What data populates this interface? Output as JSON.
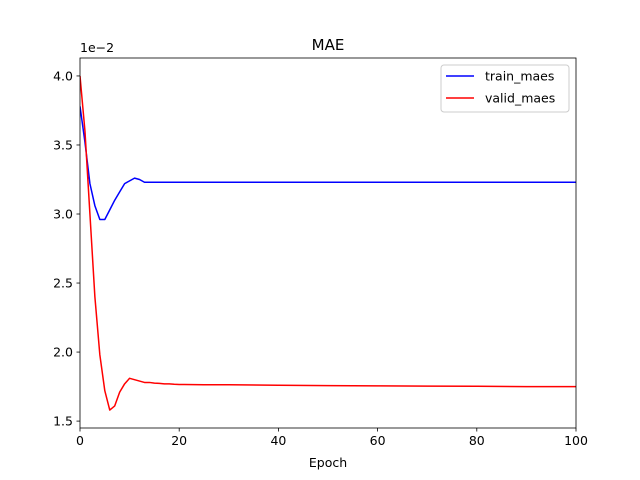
{
  "chart_data": {
    "type": "line",
    "title": "MAE",
    "xlabel": "Epoch",
    "ylabel": "",
    "y_offset_text": "1e−2",
    "xlim": [
      0,
      100
    ],
    "ylim": [
      1.45,
      4.13
    ],
    "x_ticks": [
      0,
      20,
      40,
      60,
      80,
      100
    ],
    "x_tick_labels": [
      "0",
      "20",
      "40",
      "60",
      "80",
      "100"
    ],
    "y_ticks": [
      1.5,
      2.0,
      2.5,
      3.0,
      3.5,
      4.0
    ],
    "y_tick_labels": [
      "1.5",
      "2.0",
      "2.5",
      "3.0",
      "3.5",
      "4.0"
    ],
    "grid": false,
    "legend_position": "upper right",
    "series": [
      {
        "name": "train_maes",
        "color": "#0000ff",
        "x": [
          0,
          1,
          2,
          3,
          4,
          5,
          6,
          7,
          8,
          9,
          10,
          11,
          12,
          13,
          14,
          15,
          16,
          17,
          18,
          19,
          20,
          21,
          22,
          25,
          30,
          40,
          50,
          60,
          70,
          80,
          90,
          100
        ],
        "y": [
          3.78,
          3.52,
          3.22,
          3.06,
          2.96,
          2.96,
          3.03,
          3.1,
          3.16,
          3.22,
          3.24,
          3.26,
          3.25,
          3.23,
          3.23,
          3.23,
          3.23,
          3.23,
          3.23,
          3.23,
          3.23,
          3.23,
          3.23,
          3.23,
          3.23,
          3.23,
          3.23,
          3.23,
          3.23,
          3.23,
          3.23,
          3.23
        ]
      },
      {
        "name": "valid_maes",
        "color": "#ff0000",
        "x": [
          0,
          1,
          2,
          3,
          4,
          5,
          6,
          7,
          8,
          9,
          10,
          11,
          12,
          13,
          14,
          15,
          16,
          17,
          18,
          19,
          20,
          21,
          25,
          30,
          40,
          50,
          60,
          70,
          80,
          90,
          100
        ],
        "y": [
          4.0,
          3.6,
          3.0,
          2.4,
          1.98,
          1.72,
          1.58,
          1.61,
          1.71,
          1.77,
          1.81,
          1.8,
          1.79,
          1.78,
          1.78,
          1.775,
          1.773,
          1.77,
          1.77,
          1.767,
          1.765,
          1.765,
          1.763,
          1.763,
          1.76,
          1.757,
          1.755,
          1.753,
          1.752,
          1.75,
          1.75
        ]
      }
    ]
  }
}
